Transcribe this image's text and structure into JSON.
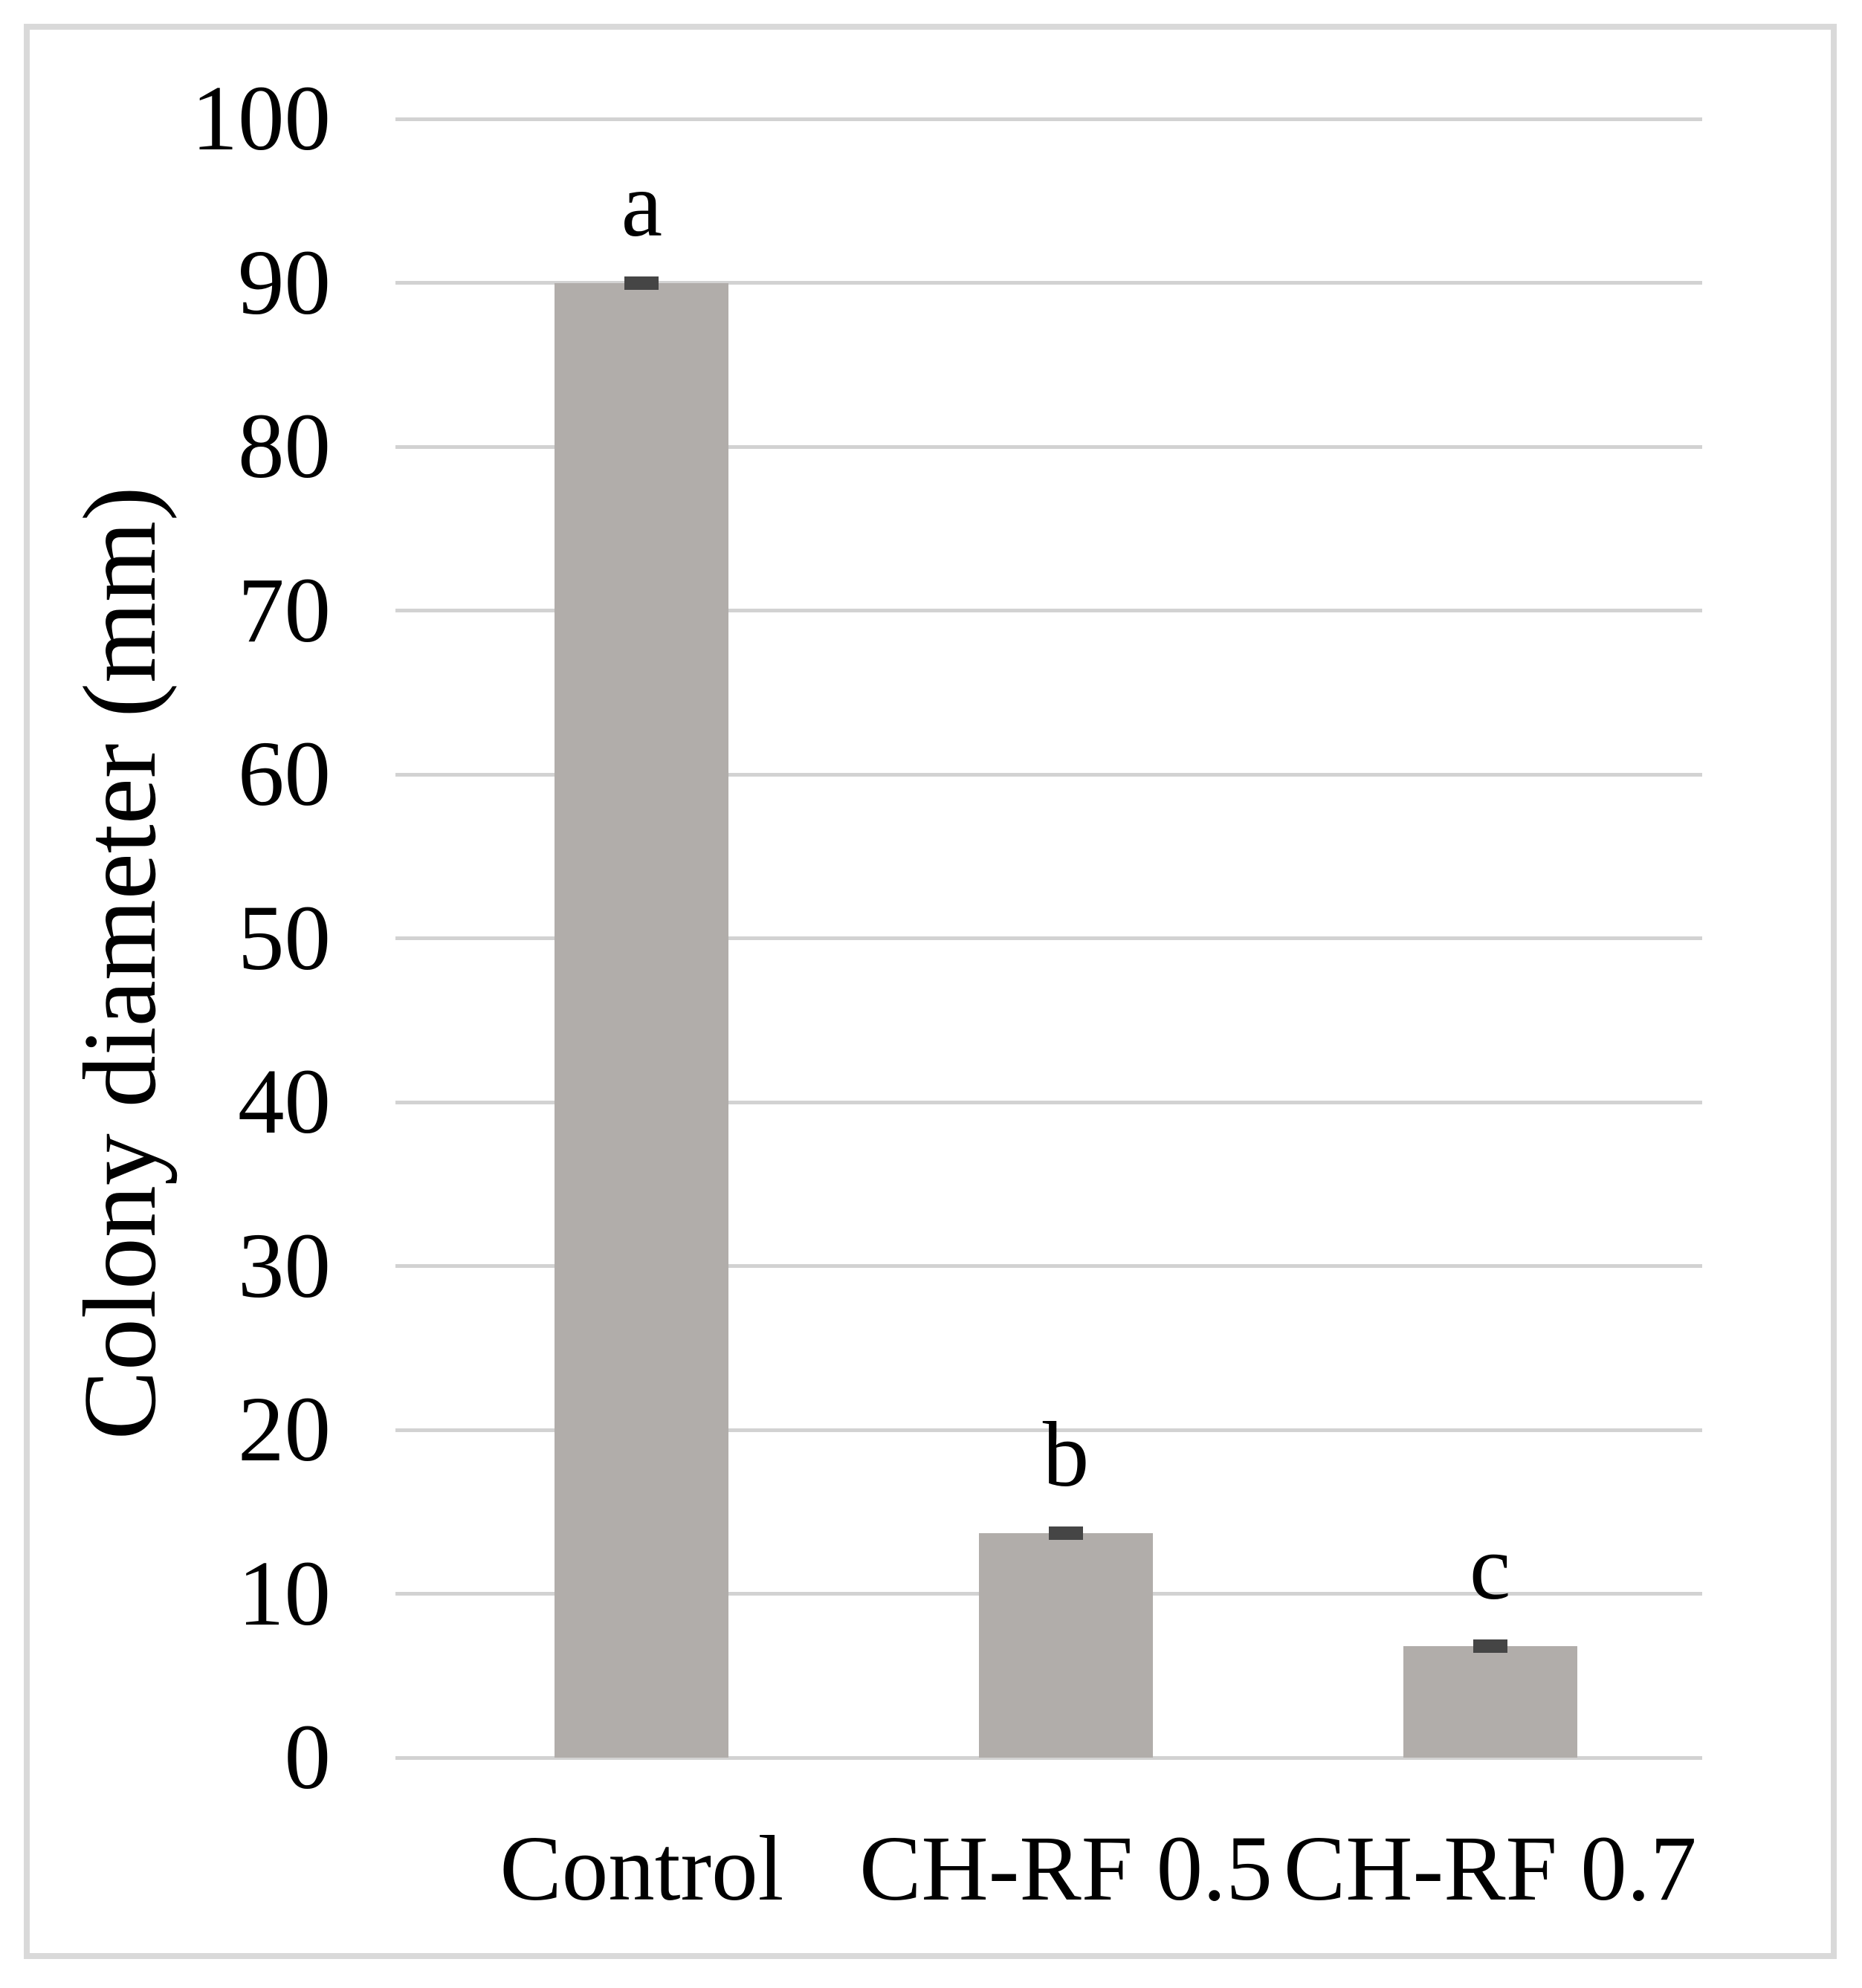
{
  "chart_data": {
    "type": "bar",
    "title": "",
    "ylabel": "Colony diameter (mm)",
    "xlabel": "",
    "ylim": [
      0,
      100
    ],
    "ytick_step": 10,
    "ytick_labels": [
      "0",
      "10",
      "20",
      "30",
      "40",
      "50",
      "60",
      "70",
      "80",
      "90",
      "100"
    ],
    "grid": true,
    "legend": false,
    "categories": [
      "Control",
      "CH-RF 0.5",
      "CH-RF 0.7"
    ],
    "values": [
      90,
      13.7,
      6.8
    ],
    "error_caps": [
      0.4,
      0.5,
      0.4
    ],
    "significance_letters": [
      "a",
      "b",
      "c"
    ],
    "colors": {
      "bar": "#b1adaa",
      "error_cap": "#454545",
      "gridline": "#d2d2d2",
      "frame_border": "#d9d9d9",
      "text": "#000000",
      "background": "#ffffff"
    }
  }
}
